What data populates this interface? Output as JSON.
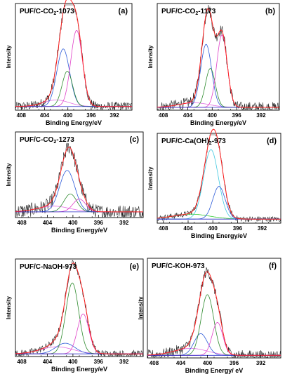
{
  "chart_data": [
    {
      "panel": "(a)",
      "type": "line",
      "title": "PUF/C-CO",
      "title_sub": "2",
      "title_suffix": "-1073",
      "xlabel": "Binding Energy/eV",
      "ylabel": "Intensity",
      "xlim": [
        409,
        389
      ],
      "x_reversed": true,
      "xticks": [
        408,
        404,
        400,
        396,
        392
      ],
      "baseline": 0.04,
      "ylim": [
        0,
        1.15
      ],
      "noise": 0.05,
      "components": [
        {
          "name": "",
          "center": 402.0,
          "height": 0.07,
          "width": 2.2,
          "color": "#e26de2"
        },
        {
          "name": "",
          "center": 400.8,
          "height": 0.62,
          "width": 1.1,
          "color": "#2d5bd8"
        },
        {
          "name": "",
          "center": 400.1,
          "height": 0.38,
          "width": 0.9,
          "color": "#2e8b2e"
        },
        {
          "name": "",
          "center": 398.5,
          "height": 0.82,
          "width": 1.0,
          "color": "#e040c8"
        }
      ]
    },
    {
      "panel": "(b)",
      "type": "line",
      "title": "PUF/C-CO",
      "title_sub": "2",
      "title_suffix": "-1173",
      "xlabel": "Binding Energy/eV",
      "ylabel": "Intensity",
      "xlim": [
        409,
        389
      ],
      "x_reversed": true,
      "xticks": [
        408,
        404,
        400,
        396,
        392
      ],
      "baseline": 0.03,
      "ylim": [
        0,
        1.15
      ],
      "noise": 0.06,
      "components": [
        {
          "name": "",
          "center": 403.0,
          "height": 0.05,
          "width": 2.5,
          "color": "#e26de2"
        },
        {
          "name": "",
          "center": 401.0,
          "height": 0.68,
          "width": 0.9,
          "color": "#2d5bd8"
        },
        {
          "name": "",
          "center": 400.3,
          "height": 0.42,
          "width": 0.8,
          "color": "#2e8b2e"
        },
        {
          "name": "",
          "center": 398.4,
          "height": 0.78,
          "width": 0.85,
          "color": "#e040c8"
        }
      ]
    },
    {
      "panel": "(c)",
      "type": "line",
      "title": "PUF/C-CO",
      "title_sub": "2",
      "title_suffix": "-1273",
      "xlabel": "Binding Energy/eV",
      "ylabel": "Intensity",
      "xlim": [
        409,
        389
      ],
      "x_reversed": true,
      "xticks": [
        408,
        404,
        400,
        396,
        392
      ],
      "baseline": 0.08,
      "ylim": [
        0,
        1.2
      ],
      "noise": 0.1,
      "components": [
        {
          "name": "",
          "center": 403.0,
          "height": 0.08,
          "width": 2.5,
          "color": "#e26de2"
        },
        {
          "name": "",
          "center": 400.9,
          "height": 0.58,
          "width": 1.2,
          "color": "#2d5bd8"
        },
        {
          "name": "",
          "center": 400.4,
          "height": 0.25,
          "width": 1.0,
          "color": "#2e8b2e"
        },
        {
          "name": "",
          "center": 399.0,
          "height": 0.18,
          "width": 1.0,
          "color": "#e040c8"
        }
      ]
    },
    {
      "panel": "(d)",
      "type": "line",
      "title": "PUF/C-Ca(OH)",
      "title_sub": "2",
      "title_suffix": "-973",
      "xlabel": "Binding Energy/eV",
      "ylabel": "Intensity",
      "xlim": [
        409,
        389
      ],
      "x_reversed": true,
      "xticks": [
        408,
        404,
        400,
        396,
        392
      ],
      "baseline": 0.05,
      "ylim": [
        0,
        1.1
      ],
      "noise": 0.035,
      "components": [
        {
          "name": "",
          "center": 403.5,
          "height": 0.06,
          "width": 3.0,
          "color": "#33cc33"
        },
        {
          "name": "",
          "center": 400.3,
          "height": 0.85,
          "width": 1.2,
          "color": "#40c8e0"
        },
        {
          "name": "",
          "center": 399.0,
          "height": 0.4,
          "width": 1.0,
          "color": "#2d5bd8"
        }
      ]
    },
    {
      "panel": "(e)",
      "type": "line",
      "title": "PUF/C-NaOH-973",
      "title_sub": "",
      "title_suffix": "",
      "xlabel": "Binding Energy/eV",
      "ylabel": "Intensity",
      "xlim": [
        409,
        389
      ],
      "x_reversed": true,
      "xticks": [
        408,
        404,
        400,
        396,
        392
      ],
      "baseline": 0.03,
      "ylim": [
        0,
        1.1
      ],
      "noise": 0.04,
      "components": [
        {
          "name": "",
          "center": 402.5,
          "height": 0.08,
          "width": 2.5,
          "color": "#e26de2"
        },
        {
          "name": "",
          "center": 401.2,
          "height": 0.12,
          "width": 1.5,
          "color": "#2d5bd8"
        },
        {
          "name": "",
          "center": 400.1,
          "height": 0.8,
          "width": 1.0,
          "color": "#2e8b2e"
        },
        {
          "name": "",
          "center": 398.4,
          "height": 0.45,
          "width": 0.9,
          "color": "#e040c8"
        }
      ]
    },
    {
      "panel": "(f)",
      "type": "line",
      "title": "PUF/C-KOH-973",
      "title_sub": "",
      "title_suffix": "",
      "xlabel": "Binding Energy/ eV",
      "ylabel": "Intensity",
      "xlim": [
        409,
        389
      ],
      "x_reversed": true,
      "xticks": [
        408,
        404,
        400,
        396,
        392
      ],
      "baseline": 0.03,
      "ylim": [
        0,
        1.15
      ],
      "noise": 0.06,
      "components": [
        {
          "name": "",
          "center": 402.5,
          "height": 0.08,
          "width": 2.5,
          "color": "#e26de2"
        },
        {
          "name": "",
          "center": 401.0,
          "height": 0.25,
          "width": 1.0,
          "color": "#2d5bd8"
        },
        {
          "name": "",
          "center": 400.0,
          "height": 0.7,
          "width": 0.95,
          "color": "#2e8b2e"
        },
        {
          "name": "",
          "center": 398.5,
          "height": 0.38,
          "width": 0.8,
          "color": "#e040c8"
        }
      ]
    }
  ],
  "colors": {
    "raw": "#222222",
    "fit": "#ff2020",
    "background": "#2b2bc8",
    "frame": "#000000"
  }
}
